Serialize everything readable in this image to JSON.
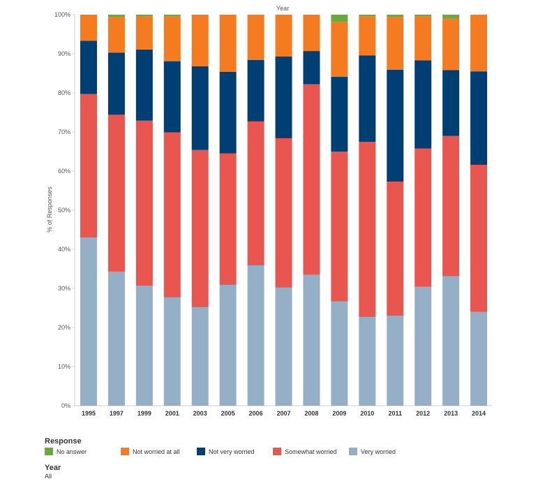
{
  "chart_data": {
    "type": "bar",
    "stacked": true,
    "top_label": "Year",
    "ylabel": "% of Responses",
    "ylim": [
      0,
      100
    ],
    "yticks": [
      "0%",
      "10%",
      "20%",
      "30%",
      "40%",
      "50%",
      "60%",
      "70%",
      "80%",
      "90%",
      "100%"
    ],
    "categories": [
      "1995",
      "1997",
      "1999",
      "2001",
      "2003",
      "2005",
      "2006",
      "2007",
      "2008",
      "2009",
      "2010",
      "2011",
      "2012",
      "2013",
      "2014"
    ],
    "series": [
      {
        "name": "Very worried",
        "color": "#95afc6",
        "values": [
          43,
          34.3,
          30.7,
          27.7,
          25.2,
          30.9,
          35.9,
          30.2,
          33.5,
          26.7,
          22.7,
          23,
          30.4,
          33.1,
          24
        ]
      },
      {
        "name": "Somewhat worried",
        "color": "#e9554f",
        "values": [
          36.7,
          40.1,
          42.2,
          42.2,
          40.2,
          33.6,
          36.8,
          38.2,
          48.7,
          38.3,
          44.8,
          34.3,
          35.4,
          35.9,
          37.6
        ]
      },
      {
        "name": "Not very worried",
        "color": "#003f73",
        "values": [
          13.6,
          15.9,
          18.2,
          18.2,
          21.4,
          20.9,
          15.7,
          20.9,
          8.5,
          19.1,
          22.1,
          28.6,
          22.5,
          16.8,
          23.9
        ]
      },
      {
        "name": "Not worried at all",
        "color": "#f47b20",
        "values": [
          6.7,
          9.1,
          8.4,
          11.4,
          13.2,
          14.6,
          11.6,
          10.7,
          9.3,
          14.1,
          9.9,
          13.5,
          11.2,
          13.2,
          14.5
        ]
      },
      {
        "name": "No answer",
        "color": "#6aaa3c",
        "values": [
          0,
          0.6,
          0.5,
          0.5,
          0,
          0,
          0,
          0,
          0,
          1.8,
          0.5,
          0.6,
          0.5,
          1,
          0
        ]
      }
    ]
  },
  "legend": {
    "title": "Response",
    "items": [
      {
        "label": "No answer",
        "color": "#6aaa3c"
      },
      {
        "label": "Not worried at all",
        "color": "#f47b20"
      },
      {
        "label": "Not very worried",
        "color": "#003f73"
      },
      {
        "label": "Somewhat worried",
        "color": "#e9554f"
      },
      {
        "label": "Very worried",
        "color": "#95afc6"
      }
    ]
  },
  "filter": {
    "title": "Year",
    "value": "All"
  }
}
